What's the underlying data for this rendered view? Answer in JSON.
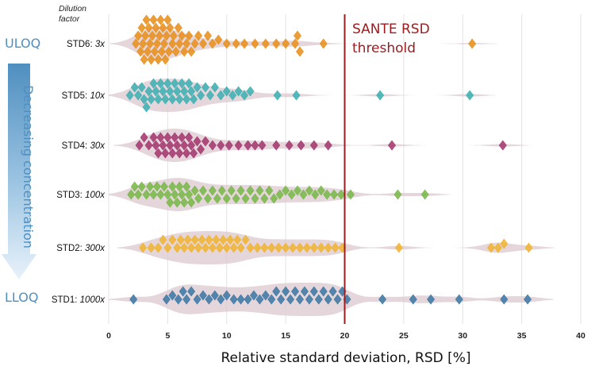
{
  "chart_data": {
    "type": "scatter",
    "title": "",
    "xlabel": "Relative standard deviation, RSD [%]",
    "xlim": [
      0,
      40
    ],
    "xticks": [
      "0",
      "5",
      "10",
      "15",
      "20",
      "25",
      "30",
      "35",
      "40"
    ],
    "row_header": [
      "Dilution",
      "factor"
    ],
    "threshold": {
      "value": 20,
      "label_line1": "SANTE RSD",
      "label_line2": "threshold",
      "color": "#9b1d20"
    },
    "side_labels": {
      "top": "ULOQ",
      "bottom": "LLOQ",
      "arrow": "Decreasing concentration"
    },
    "series": [
      {
        "name": "STD6",
        "factor": "3x",
        "color": "#e8901c",
        "values": [
          2.3,
          2.5,
          2.7,
          2.8,
          2.9,
          3.0,
          3.1,
          3.2,
          3.3,
          3.4,
          3.5,
          3.6,
          3.7,
          3.8,
          3.9,
          4.0,
          4.1,
          4.2,
          4.3,
          4.4,
          4.5,
          4.6,
          4.7,
          4.8,
          4.9,
          5.0,
          5.1,
          5.2,
          5.4,
          5.5,
          5.7,
          5.9,
          6.0,
          6.2,
          6.4,
          6.6,
          6.8,
          7.0,
          7.3,
          7.6,
          8.0,
          8.4,
          8.8,
          9.3,
          10.0,
          10.8,
          11.5,
          12.4,
          13.3,
          14.2,
          15.0,
          15.8,
          16.0,
          16.2,
          18.2,
          30.8
        ]
      },
      {
        "name": "STD5",
        "factor": "10x",
        "color": "#3fb0b2",
        "values": [
          1.8,
          2.2,
          2.5,
          2.8,
          3.0,
          3.2,
          3.4,
          3.6,
          3.8,
          4.0,
          4.2,
          4.4,
          4.6,
          4.8,
          5.0,
          5.2,
          5.4,
          5.6,
          5.8,
          6.0,
          6.2,
          6.4,
          6.6,
          6.8,
          7.0,
          7.2,
          7.5,
          7.8,
          8.2,
          8.6,
          9.0,
          9.5,
          10.0,
          10.5,
          11.0,
          11.5,
          12.0,
          14.3,
          15.9,
          23.0,
          30.6
        ]
      },
      {
        "name": "STD4",
        "factor": "30x",
        "color": "#a4396f",
        "values": [
          2.6,
          3.0,
          3.4,
          3.8,
          4.0,
          4.2,
          4.4,
          4.6,
          4.8,
          5.0,
          5.2,
          5.4,
          5.6,
          5.8,
          6.0,
          6.2,
          6.4,
          6.6,
          6.8,
          7.0,
          7.2,
          7.5,
          7.8,
          8.2,
          8.8,
          9.5,
          10.2,
          11.0,
          11.8,
          12.4,
          13.0,
          14.2,
          15.3,
          16.3,
          17.4,
          18.6,
          24.0,
          33.4
        ]
      },
      {
        "name": "STD3",
        "factor": "100x",
        "color": "#7ab84a",
        "values": [
          1.9,
          2.2,
          2.5,
          2.8,
          3.2,
          3.5,
          3.8,
          4.1,
          4.4,
          4.7,
          5.0,
          5.2,
          5.4,
          5.6,
          5.8,
          6.0,
          6.2,
          6.4,
          6.6,
          6.8,
          7.0,
          7.3,
          7.6,
          8.0,
          8.4,
          8.8,
          9.2,
          9.6,
          10.0,
          10.4,
          10.8,
          11.2,
          11.6,
          12.0,
          12.4,
          12.8,
          13.2,
          13.6,
          14.0,
          14.5,
          15.0,
          15.5,
          16.0,
          16.5,
          17.0,
          17.5,
          18.0,
          18.5,
          19.1,
          19.7,
          20.5,
          24.5,
          26.8
        ]
      },
      {
        "name": "STD2",
        "factor": "300x",
        "color": "#f0b534",
        "values": [
          2.9,
          3.6,
          4.2,
          4.6,
          5.0,
          5.4,
          5.8,
          6.1,
          6.4,
          6.7,
          7.0,
          7.3,
          7.6,
          7.9,
          8.2,
          8.5,
          8.8,
          9.1,
          9.4,
          9.7,
          10.0,
          10.3,
          10.6,
          10.9,
          11.2,
          11.6,
          12.0,
          12.6,
          13.2,
          13.8,
          14.4,
          15.0,
          15.6,
          16.2,
          16.8,
          17.4,
          18.0,
          18.6,
          19.2,
          19.8,
          24.6,
          32.4,
          33.0,
          33.5,
          35.6
        ]
      },
      {
        "name": "STD1",
        "factor": "1000x",
        "color": "#3f79a4",
        "values": [
          2.1,
          4.9,
          5.4,
          5.9,
          6.3,
          6.6,
          7.0,
          7.5,
          8.0,
          8.5,
          9.0,
          9.5,
          10.0,
          10.6,
          11.2,
          11.8,
          12.3,
          12.8,
          13.3,
          13.8,
          14.2,
          14.6,
          15.0,
          15.4,
          15.8,
          16.2,
          16.6,
          17.0,
          17.4,
          17.8,
          18.2,
          18.6,
          19.0,
          19.4,
          19.8,
          20.2,
          23.2,
          25.8,
          27.3,
          29.7,
          33.5,
          35.5
        ]
      }
    ]
  }
}
